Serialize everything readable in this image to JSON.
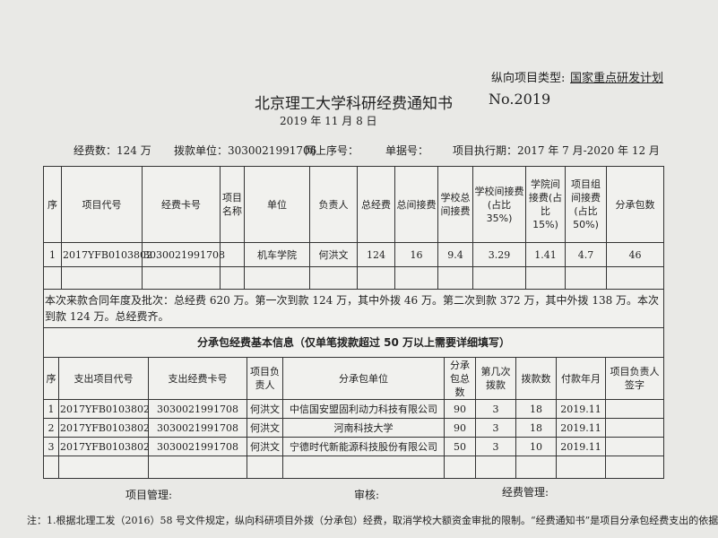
{
  "header": {
    "project_type_label": "纵向项目类型:",
    "project_type": "国家重点研发计划",
    "title": "北京理工大学科研经费通知书",
    "number": "No.2019",
    "date": "2019 年 11 月 8 日",
    "info": [
      "经费数：124 万",
      "拨款单位：3030021991706",
      "网上序号：",
      "单据号：",
      "项目执行期：2017 年 7 月-2020 年 12 月"
    ]
  },
  "table1": {
    "headers": [
      "序",
      "项目代号",
      "经费卡号",
      "项目名称",
      "单位",
      "负责人",
      "总经费",
      "总间接费",
      "学校总间接费",
      "学校间接费(占比 35%)",
      "学院间接费(占比 15%)",
      "项目组间接费(占比 50%)",
      "分承包数"
    ],
    "rows": [
      {
        "no": "1",
        "code": "2017YFB0103802",
        "card": "3030021991708",
        "unit": "机车学院",
        "leader": "何洪文",
        "total": "124",
        "indirect": "16",
        "school_total": "9.4",
        "school": "3.29",
        "college": "1.41",
        "group": "4.7",
        "sub": "46"
      }
    ],
    "note": "本次来款合同年度及批次：总经费 620 万。第一次到款 124 万，其中外拨 46 万。第二次到款 372 万，其中外拨 138 万。本次到款 124 万。总经费齐。"
  },
  "table2": {
    "title": "分承包经费基本信息（仅单笔拨款超过 50 万以上需要详细填写）",
    "headers": [
      "序",
      "支出项目代号",
      "支出经费卡号",
      "项目负责人",
      "分承包单位",
      "分承包总数",
      "第几次拨款",
      "拨款数",
      "付款年月",
      "项目负责人签字"
    ],
    "rows": [
      [
        "1",
        "2017YFB0103802",
        "3030021991708",
        "何洪文",
        "中信国安盟固利动力科技有限公司",
        "90",
        "3",
        "18",
        "2019.11"
      ],
      [
        "2",
        "2017YFB0103802",
        "3030021991708",
        "何洪文",
        "河南科技大学",
        "90",
        "3",
        "18",
        "2019.11"
      ],
      [
        "3",
        "2017YFB0103802",
        "3030021991708",
        "何洪文",
        "宁德时代新能源科技股份有限公司",
        "50",
        "3",
        "10",
        "2019.11"
      ]
    ]
  },
  "footer": {
    "signatures": [
      "项目管理:",
      "审核:",
      "经费管理:"
    ],
    "footnote": "注：1.根据北理工发（2016）58 号文件规定，纵向科研项目外拨（分承包）经费，取消学校大额资金审批的限制。“经费通知书”是项目分承包经费支出的依据"
  }
}
